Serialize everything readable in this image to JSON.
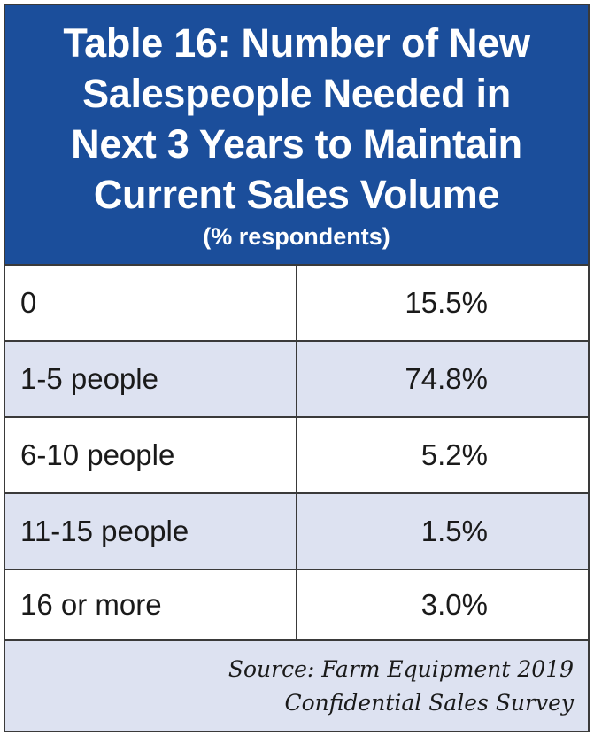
{
  "chart_data": {
    "type": "table",
    "title_lines": [
      "Table 16: Number of New",
      "Salespeople Needed in",
      "Next 3 Years to Maintain",
      "Current Sales Volume"
    ],
    "subtitle": "(% respondents)",
    "rows": [
      {
        "label": "0",
        "value": "15.5%"
      },
      {
        "label": "1-5 people",
        "value": "74.8%"
      },
      {
        "label": "6-10 people",
        "value": "5.2%"
      },
      {
        "label": "11-15 people",
        "value": "1.5%"
      },
      {
        "label": "16 or more",
        "value": "3.0%"
      }
    ],
    "source_lines": [
      "Source: Farm Equipment 2019",
      "Confidential Sales Survey"
    ]
  },
  "colors": {
    "header_background": "#1b4e9b",
    "alt_row_background": "#dde2f1",
    "border": "#3a3a3a"
  }
}
